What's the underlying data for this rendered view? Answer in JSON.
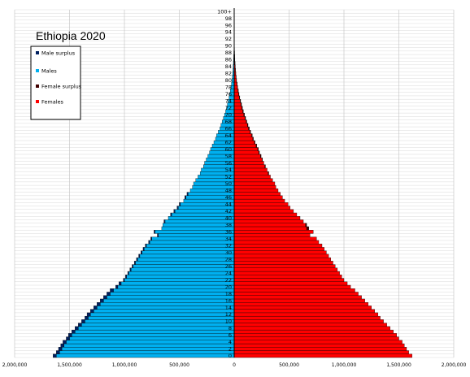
{
  "chart_data": {
    "type": "bar",
    "orientation": "horizontal",
    "title": "Ethiopia 2020",
    "x_range": [
      -2000000,
      2000000
    ],
    "x_tick_labels": [
      "2,000,000",
      "1,500,000",
      "1,000,000",
      "500,000",
      "0",
      "500,000",
      "1,000,000",
      "1,500,000",
      "2,000,000"
    ],
    "age_tick_labels": [
      "0",
      "2",
      "4",
      "6",
      "8",
      "10",
      "12",
      "14",
      "16",
      "18",
      "20",
      "22",
      "24",
      "26",
      "28",
      "30",
      "32",
      "34",
      "36",
      "38",
      "40",
      "42",
      "44",
      "46",
      "48",
      "50",
      "52",
      "54",
      "56",
      "58",
      "60",
      "62",
      "64",
      "66",
      "68",
      "70",
      "72",
      "74",
      "76",
      "78",
      "80",
      "82",
      "84",
      "86",
      "88",
      "90",
      "92",
      "94",
      "96",
      "98",
      "100+"
    ],
    "ages": [
      "0",
      "1",
      "2",
      "3",
      "4",
      "5",
      "6",
      "7",
      "8",
      "9",
      "10",
      "11",
      "12",
      "13",
      "14",
      "15",
      "16",
      "17",
      "18",
      "19",
      "20",
      "21",
      "22",
      "23",
      "24",
      "25",
      "26",
      "27",
      "28",
      "29",
      "30",
      "31",
      "32",
      "33",
      "34",
      "35",
      "36",
      "37",
      "38",
      "39",
      "40",
      "41",
      "42",
      "43",
      "44",
      "45",
      "46",
      "47",
      "48",
      "49",
      "50",
      "51",
      "52",
      "53",
      "54",
      "55",
      "56",
      "57",
      "58",
      "59",
      "60",
      "61",
      "62",
      "63",
      "64",
      "65",
      "66",
      "67",
      "68",
      "69",
      "70",
      "71",
      "72",
      "73",
      "74",
      "75",
      "76",
      "77",
      "78",
      "79",
      "80",
      "81",
      "82",
      "83",
      "84",
      "85",
      "86",
      "87",
      "88",
      "89",
      "90",
      "91",
      "92",
      "93",
      "94",
      "95",
      "96",
      "97",
      "98",
      "99",
      "100+"
    ],
    "series": [
      {
        "name": "Males",
        "color": "#00b0f0",
        "values": [
          1650000,
          1620000,
          1600000,
          1580000,
          1560000,
          1530000,
          1510000,
          1480000,
          1450000,
          1420000,
          1390000,
          1360000,
          1340000,
          1310000,
          1280000,
          1250000,
          1220000,
          1190000,
          1160000,
          1130000,
          1080000,
          1050000,
          1010000,
          990000,
          970000,
          950000,
          930000,
          910000,
          890000,
          870000,
          850000,
          830000,
          810000,
          780000,
          760000,
          700000,
          730000,
          660000,
          650000,
          640000,
          600000,
          580000,
          550000,
          520000,
          500000,
          460000,
          450000,
          430000,
          400000,
          380000,
          370000,
          350000,
          330000,
          310000,
          300000,
          280000,
          270000,
          255000,
          240000,
          225000,
          215000,
          200000,
          185000,
          170000,
          160000,
          145000,
          130000,
          120000,
          110000,
          98000,
          88000,
          78000,
          70000,
          62000,
          55000,
          47000,
          41000,
          35000,
          30000,
          25000,
          20000,
          17000,
          14000,
          11000,
          9000,
          7000,
          5500,
          4300,
          3300,
          2500,
          1800,
          1300,
          900,
          600,
          400,
          250,
          150,
          100,
          60,
          40,
          30
        ]
      },
      {
        "name": "Females",
        "color": "#ff0000",
        "values": [
          1620000,
          1590000,
          1570000,
          1550000,
          1530000,
          1500000,
          1480000,
          1450000,
          1420000,
          1390000,
          1360000,
          1330000,
          1310000,
          1280000,
          1250000,
          1220000,
          1190000,
          1160000,
          1130000,
          1100000,
          1060000,
          1030000,
          1000000,
          980000,
          960000,
          940000,
          920000,
          900000,
          880000,
          860000,
          840000,
          820000,
          800000,
          770000,
          750000,
          690000,
          720000,
          680000,
          660000,
          630000,
          600000,
          570000,
          540000,
          510000,
          490000,
          460000,
          440000,
          420000,
          400000,
          380000,
          370000,
          350000,
          330000,
          315000,
          300000,
          285000,
          270000,
          258000,
          245000,
          230000,
          220000,
          205000,
          190000,
          175000,
          165000,
          150000,
          138000,
          126000,
          115000,
          104000,
          94000,
          84000,
          75000,
          67000,
          59000,
          51000,
          44000,
          38000,
          32000,
          27000,
          22000,
          18500,
          15000,
          12000,
          10000,
          8000,
          6200,
          4800,
          3700,
          2800,
          2000,
          1500,
          1000,
          700,
          450,
          300,
          180,
          120,
          70,
          45,
          35
        ]
      },
      {
        "name": "Male surplus",
        "color": "#002060"
      },
      {
        "name": "Female surplus",
        "color": "#400000"
      }
    ],
    "legend": [
      "Male surplus",
      "Males",
      "Female surplus",
      "Females"
    ],
    "legend_placement": "top-left",
    "grid": true
  }
}
